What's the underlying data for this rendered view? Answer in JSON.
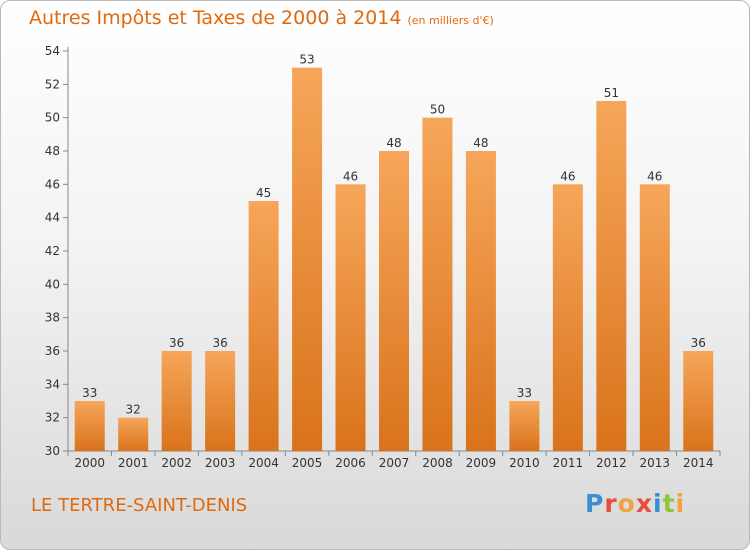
{
  "header": {
    "title": "Autres Impôts et Taxes de 2000 à 2014",
    "unit": "(en milliers d'€)"
  },
  "footer": {
    "place": "LE TERTRE-SAINT-DENIS",
    "logo": {
      "text": "Proxiti",
      "letters": [
        {
          "ch": "P",
          "color": "#3a8fd4"
        },
        {
          "ch": "r",
          "color": "#e94b3c"
        },
        {
          "ch": "o",
          "color": "#f1a33b"
        },
        {
          "ch": "x",
          "color": "#e94b3c"
        },
        {
          "ch": "i",
          "color": "#3a8fd4"
        },
        {
          "ch": "t",
          "color": "#8cc63e"
        },
        {
          "ch": "i",
          "color": "#f1a33b"
        }
      ]
    }
  },
  "chart_data": {
    "type": "bar",
    "categories": [
      "2000",
      "2001",
      "2002",
      "2003",
      "2004",
      "2005",
      "2006",
      "2007",
      "2008",
      "2009",
      "2010",
      "2011",
      "2012",
      "2013",
      "2014"
    ],
    "values": [
      33,
      32,
      36,
      36,
      45,
      53,
      46,
      48,
      50,
      48,
      33,
      46,
      51,
      46,
      36
    ],
    "data_labels": [
      "33",
      "32",
      "36",
      "36",
      "45",
      "53",
      "46",
      "48",
      "50",
      "48",
      "33",
      "46",
      "51",
      "46",
      "36"
    ],
    "yticks": [
      30,
      32,
      34,
      36,
      38,
      40,
      42,
      44,
      46,
      48,
      50,
      52,
      54
    ],
    "ylim": [
      30,
      54
    ],
    "grid": false,
    "bar_color": "#ee8a2d",
    "bar_color_light": "#f6a65a",
    "bar_color_dark": "#d9731b",
    "axis_color": "#888888",
    "text_color": "#333333"
  }
}
